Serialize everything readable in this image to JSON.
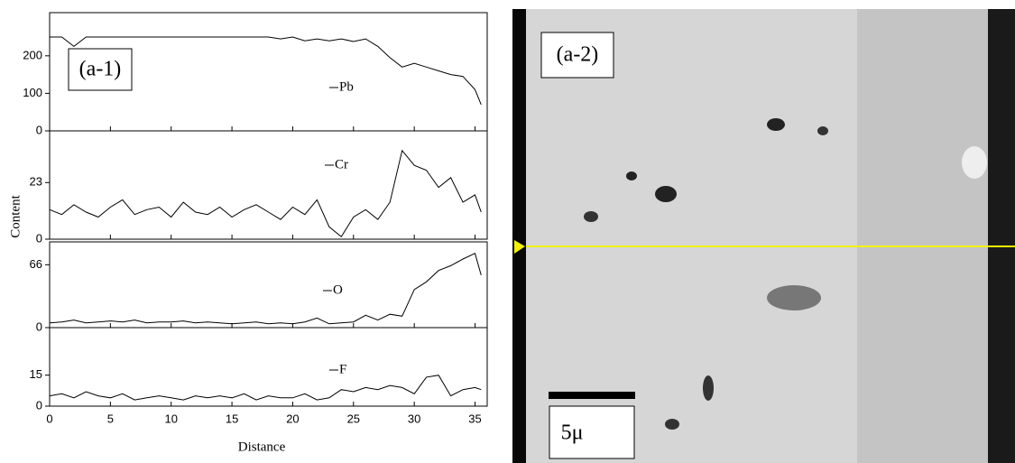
{
  "shared_axes": {
    "xlabel": "Distance",
    "ylabel": "Content"
  },
  "image": {
    "label": "(a-2)",
    "scale_label": "5μ"
  },
  "chart_data": [
    {
      "type": "line",
      "annotation": "(a-1)",
      "xlim": [
        0,
        36
      ],
      "ylim": [
        0,
        315
      ],
      "yticks": [
        0,
        100,
        200
      ],
      "x": [
        0,
        1,
        2,
        3,
        4,
        5,
        6,
        7,
        8,
        9,
        10,
        11,
        12,
        13,
        14,
        15,
        16,
        17,
        18,
        19,
        20,
        21,
        22,
        23,
        24,
        25,
        26,
        27,
        28,
        29,
        30,
        31,
        32,
        33,
        34,
        35,
        35.5
      ],
      "series": [
        {
          "name": "Pb",
          "color": "#000000",
          "values": [
            250,
            250,
            225,
            250,
            250,
            250,
            250,
            250,
            250,
            250,
            250,
            250,
            250,
            250,
            250,
            250,
            250,
            250,
            250,
            245,
            250,
            240,
            245,
            240,
            245,
            238,
            245,
            225,
            195,
            170,
            180,
            170,
            160,
            150,
            145,
            110,
            70
          ]
        }
      ]
    },
    {
      "type": "line",
      "xlim": [
        0,
        36
      ],
      "ylim": [
        0,
        44
      ],
      "yticks": [
        0,
        23
      ],
      "x": [
        0,
        1,
        2,
        3,
        4,
        5,
        6,
        7,
        8,
        9,
        10,
        11,
        12,
        13,
        14,
        15,
        16,
        17,
        18,
        19,
        20,
        21,
        22,
        23,
        24,
        25,
        26,
        27,
        28,
        29,
        30,
        31,
        32,
        33,
        34,
        35,
        35.5
      ],
      "series": [
        {
          "name": "Cr",
          "color": "#000000",
          "values": [
            12,
            10,
            14,
            11,
            9,
            13,
            16,
            10,
            12,
            13,
            9,
            15,
            11,
            10,
            13,
            9,
            12,
            14,
            11,
            8,
            13,
            10,
            16,
            5,
            1,
            9,
            12,
            8,
            15,
            36,
            30,
            28,
            21,
            25,
            15,
            18,
            11
          ]
        }
      ]
    },
    {
      "type": "line",
      "xlim": [
        0,
        36
      ],
      "ylim": [
        0,
        90
      ],
      "yticks": [
        0,
        66
      ],
      "x": [
        0,
        1,
        2,
        3,
        4,
        5,
        6,
        7,
        8,
        9,
        10,
        11,
        12,
        13,
        14,
        15,
        16,
        17,
        18,
        19,
        20,
        21,
        22,
        23,
        24,
        25,
        26,
        27,
        28,
        29,
        30,
        31,
        32,
        33,
        34,
        35,
        35.5
      ],
      "series": [
        {
          "name": "O",
          "color": "#000000",
          "values": [
            5,
            6,
            8,
            5,
            6,
            7,
            6,
            8,
            5,
            6,
            6,
            7,
            5,
            6,
            5,
            4,
            5,
            6,
            4,
            5,
            4,
            6,
            10,
            4,
            5,
            6,
            13,
            8,
            14,
            12,
            40,
            48,
            60,
            65,
            72,
            78,
            55
          ]
        }
      ]
    },
    {
      "type": "line",
      "xlim": [
        0,
        36
      ],
      "ylim": [
        0,
        38
      ],
      "yticks": [
        0,
        15
      ],
      "xticks": [
        0,
        5,
        10,
        15,
        20,
        25,
        30,
        35
      ],
      "x": [
        0,
        1,
        2,
        3,
        4,
        5,
        6,
        7,
        8,
        9,
        10,
        11,
        12,
        13,
        14,
        15,
        16,
        17,
        18,
        19,
        20,
        21,
        22,
        23,
        24,
        25,
        26,
        27,
        28,
        29,
        30,
        31,
        32,
        33,
        34,
        35,
        35.5
      ],
      "series": [
        {
          "name": "F",
          "color": "#000000",
          "values": [
            5,
            6,
            4,
            7,
            5,
            4,
            6,
            3,
            4,
            5,
            4,
            3,
            5,
            4,
            5,
            4,
            6,
            3,
            5,
            4,
            4,
            6,
            3,
            4,
            8,
            7,
            9,
            8,
            10,
            9,
            6,
            14,
            15,
            5,
            8,
            9,
            8
          ]
        }
      ]
    }
  ]
}
